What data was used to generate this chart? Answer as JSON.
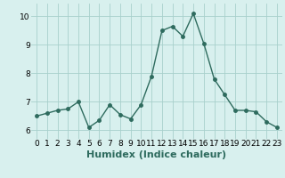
{
  "x": [
    0,
    1,
    2,
    3,
    4,
    5,
    6,
    7,
    8,
    9,
    10,
    11,
    12,
    13,
    14,
    15,
    16,
    17,
    18,
    19,
    20,
    21,
    22,
    23
  ],
  "y": [
    6.5,
    6.6,
    6.7,
    6.75,
    7.0,
    6.1,
    6.35,
    6.9,
    6.55,
    6.4,
    6.9,
    7.9,
    9.5,
    9.65,
    9.3,
    10.1,
    9.05,
    7.8,
    7.25,
    6.7,
    6.7,
    6.65,
    6.3,
    6.1
  ],
  "line_color": "#2e6b5e",
  "marker": "o",
  "markersize": 2.5,
  "linewidth": 1.0,
  "xlabel": "Humidex (Indice chaleur)",
  "xlim": [
    -0.5,
    23.5
  ],
  "ylim": [
    5.7,
    10.45
  ],
  "yticks": [
    6,
    7,
    8,
    9,
    10
  ],
  "xticks": [
    0,
    1,
    2,
    3,
    4,
    5,
    6,
    7,
    8,
    9,
    10,
    11,
    12,
    13,
    14,
    15,
    16,
    17,
    18,
    19,
    20,
    21,
    22,
    23
  ],
  "bg_color": "#d8f0ee",
  "grid_color": "#a8d0cc",
  "tick_fontsize": 6.5,
  "xlabel_fontsize": 8.0
}
